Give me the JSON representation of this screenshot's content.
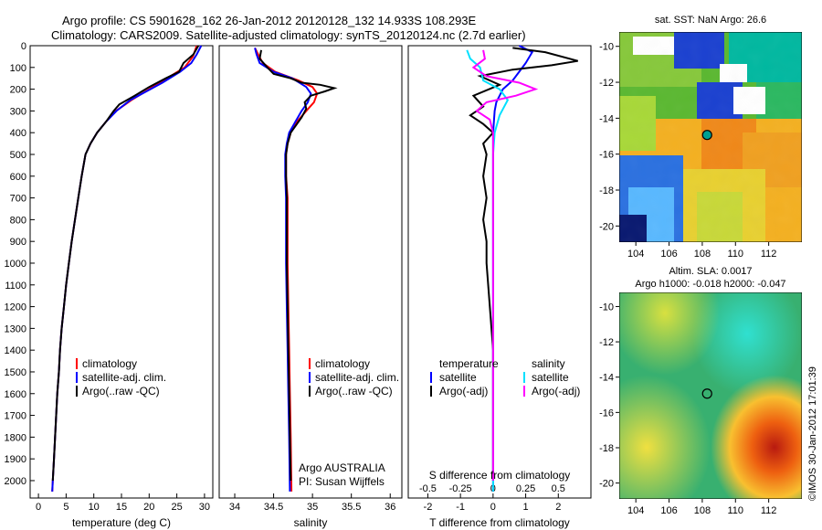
{
  "header": {
    "line1": "Argo profile: CS 5901628_162 26-Jan-2012 20120128_132 14.933S 108.293E",
    "line2": "Climatology: CARS2009. Satellite-adjusted climatology: synTS_20120124.nc (2.7d earlier)"
  },
  "colors": {
    "climatology": "#ff0000",
    "satellite_adj": "#0000ff",
    "argo": "#000000",
    "salinity_satellite": "#00e0ff",
    "salinity_argo": "#ff00ff"
  },
  "depth_axis": {
    "ticks": [
      0,
      100,
      200,
      300,
      400,
      500,
      600,
      700,
      800,
      900,
      1000,
      1100,
      1200,
      1300,
      1400,
      1500,
      1600,
      1700,
      1800,
      1900,
      2000
    ],
    "range": [
      0,
      2080
    ]
  },
  "panels": {
    "temperature": {
      "xlabel": "temperature (deg C)",
      "xticks": [
        "0",
        "5",
        "10",
        "15",
        "20",
        "25",
        "30"
      ],
      "xrange": [
        -1.5,
        31.5
      ],
      "legend": [
        "climatology",
        "satellite-adj. clim.",
        "Argo(..raw -QC)"
      ]
    },
    "salinity": {
      "xlabel": "salinity",
      "xticks": [
        "34",
        "34.5",
        "35",
        "35.5",
        "36"
      ],
      "xrange": [
        33.8,
        36.15
      ],
      "legend": [
        "climatology",
        "satellite-adj. clim.",
        "Argo(..raw -QC)"
      ],
      "note1": "Argo AUSTRALIA",
      "note2": "PI: Susan Wijffels"
    },
    "difference": {
      "xlabel": "T difference from climatology",
      "xlabel_top": "S difference from climatology",
      "xticks_top": [
        "-0.5",
        "-0.25",
        "0",
        "0.25",
        "0.5"
      ],
      "xticks_bottom": [
        "-2",
        "-1",
        "0",
        "1",
        "2"
      ],
      "xrange": [
        -2.6,
        3.0
      ],
      "legend_left_title": "temperature",
      "legend_left": [
        "satellite",
        "Argo(-adj)"
      ],
      "legend_right_title": "salinity",
      "legend_right": [
        "satellite",
        "Argo(-adj)"
      ]
    }
  },
  "maps": {
    "sst_title": "sat. SST: NaN Argo: 26.6",
    "sla_title1": "Altim. SLA: 0.0017",
    "sla_title2": "Argo h1000: -0.018 h2000: -0.047",
    "xticks": [
      "104",
      "106",
      "108",
      "110",
      "112"
    ],
    "yticks": [
      "-10",
      "-12",
      "-14",
      "-16",
      "-18",
      "-20"
    ],
    "xrange": [
      103,
      114
    ],
    "yrange": [
      -20.9,
      -9.2
    ],
    "argo_point": {
      "lon": 108.293,
      "lat": -14.933
    }
  },
  "footer": {
    "credit": "©IMOS 30-Jan-2012 17:01:39"
  },
  "chart_data": [
    {
      "type": "line",
      "title": "",
      "xlabel": "temperature (deg C)",
      "ylabel": "",
      "ylim": [
        0,
        2080
      ],
      "xlim": [
        -1.5,
        31.5
      ],
      "series": [
        {
          "name": "climatology",
          "points": [
            [
              28.6,
              0
            ],
            [
              27.9,
              50
            ],
            [
              26.4,
              100
            ],
            [
              23.2,
              150
            ],
            [
              20.0,
              200
            ],
            [
              16.8,
              250
            ],
            [
              14.0,
              300
            ],
            [
              12.2,
              350
            ],
            [
              10.6,
              400
            ],
            [
              9.4,
              450
            ],
            [
              8.5,
              500
            ],
            [
              7.8,
              600
            ],
            [
              7.2,
              700
            ],
            [
              6.6,
              800
            ],
            [
              6.0,
              900
            ],
            [
              5.5,
              1000
            ],
            [
              5.0,
              1100
            ],
            [
              4.6,
              1200
            ],
            [
              4.2,
              1300
            ],
            [
              3.9,
              1400
            ],
            [
              3.7,
              1500
            ],
            [
              3.4,
              1600
            ],
            [
              3.2,
              1700
            ],
            [
              3.0,
              1800
            ],
            [
              2.8,
              1900
            ],
            [
              2.6,
              2000
            ],
            [
              2.5,
              2050
            ]
          ]
        },
        {
          "name": "satellite-adj. clim.",
          "points": [
            [
              29.4,
              0
            ],
            [
              28.6,
              40
            ],
            [
              27.6,
              80
            ],
            [
              25.6,
              120
            ],
            [
              22.4,
              170
            ],
            [
              19.5,
              210
            ],
            [
              16.6,
              250
            ],
            [
              14.1,
              300
            ],
            [
              12.2,
              350
            ],
            [
              10.6,
              400
            ],
            [
              9.4,
              450
            ],
            [
              8.5,
              500
            ],
            [
              7.8,
              600
            ],
            [
              7.2,
              700
            ],
            [
              6.6,
              800
            ],
            [
              6.0,
              900
            ],
            [
              5.5,
              1000
            ],
            [
              5.0,
              1100
            ],
            [
              4.6,
              1200
            ],
            [
              4.2,
              1300
            ],
            [
              3.9,
              1400
            ],
            [
              3.7,
              1500
            ],
            [
              3.4,
              1600
            ],
            [
              3.2,
              1700
            ],
            [
              3.0,
              1800
            ],
            [
              2.8,
              1900
            ],
            [
              2.6,
              2000
            ],
            [
              2.5,
              2050
            ]
          ]
        },
        {
          "name": "Argo(..raw -QC)",
          "points": [
            [
              28.9,
              0
            ],
            [
              28.0,
              40
            ],
            [
              26.2,
              80
            ],
            [
              25.4,
              120
            ],
            [
              23.0,
              150
            ],
            [
              20.0,
              190
            ],
            [
              17.4,
              230
            ],
            [
              14.6,
              270
            ],
            [
              13.6,
              300
            ],
            [
              12.2,
              350
            ],
            [
              10.6,
              400
            ],
            [
              9.4,
              450
            ],
            [
              8.5,
              500
            ],
            [
              7.8,
              600
            ],
            [
              7.2,
              700
            ],
            [
              6.6,
              800
            ],
            [
              6.0,
              900
            ],
            [
              5.5,
              1000
            ],
            [
              5.0,
              1100
            ],
            [
              4.6,
              1200
            ],
            [
              4.2,
              1300
            ],
            [
              3.9,
              1400
            ],
            [
              3.7,
              1500
            ],
            [
              3.4,
              1600
            ],
            [
              3.2,
              1700
            ],
            [
              3.0,
              1800
            ],
            [
              2.8,
              1900
            ],
            [
              2.6,
              2000
            ]
          ]
        }
      ]
    },
    {
      "type": "line",
      "title": "",
      "xlabel": "salinity",
      "ylabel": "",
      "ylim": [
        0,
        2080
      ],
      "xlim": [
        33.8,
        36.15
      ],
      "series": [
        {
          "name": "climatology",
          "points": [
            [
              34.26,
              10
            ],
            [
              34.3,
              40
            ],
            [
              34.36,
              80
            ],
            [
              34.52,
              120
            ],
            [
              34.82,
              160
            ],
            [
              35.0,
              190
            ],
            [
              35.06,
              220
            ],
            [
              35.02,
              260
            ],
            [
              34.92,
              300
            ],
            [
              34.8,
              350
            ],
            [
              34.72,
              400
            ],
            [
              34.68,
              450
            ],
            [
              34.66,
              500
            ],
            [
              34.66,
              600
            ],
            [
              34.68,
              700
            ],
            [
              34.68,
              800
            ],
            [
              34.68,
              1000
            ],
            [
              34.69,
              1200
            ],
            [
              34.7,
              1400
            ],
            [
              34.71,
              1600
            ],
            [
              34.72,
              1800
            ],
            [
              34.73,
              2050
            ]
          ]
        },
        {
          "name": "satellite-adj. clim.",
          "points": [
            [
              34.26,
              10
            ],
            [
              34.28,
              40
            ],
            [
              34.32,
              80
            ],
            [
              34.5,
              120
            ],
            [
              34.74,
              150
            ],
            [
              34.92,
              190
            ],
            [
              34.98,
              220
            ],
            [
              34.94,
              260
            ],
            [
              34.86,
              300
            ],
            [
              34.78,
              350
            ],
            [
              34.7,
              400
            ],
            [
              34.67,
              450
            ],
            [
              34.65,
              500
            ],
            [
              34.65,
              600
            ],
            [
              34.66,
              700
            ],
            [
              34.66,
              800
            ],
            [
              34.66,
              1000
            ],
            [
              34.67,
              1200
            ],
            [
              34.68,
              1400
            ],
            [
              34.69,
              1600
            ],
            [
              34.7,
              1800
            ],
            [
              34.71,
              2050
            ]
          ]
        },
        {
          "name": "Argo(..raw -QC)",
          "points": [
            [
              34.34,
              20
            ],
            [
              34.32,
              60
            ],
            [
              34.42,
              100
            ],
            [
              34.5,
              130
            ],
            [
              34.72,
              150
            ],
            [
              34.86,
              170
            ],
            [
              35.1,
              180
            ],
            [
              35.28,
              195
            ],
            [
              35.16,
              210
            ],
            [
              34.98,
              230
            ],
            [
              34.9,
              260
            ],
            [
              34.92,
              290
            ],
            [
              34.86,
              330
            ],
            [
              34.78,
              370
            ],
            [
              34.72,
              400
            ],
            [
              34.68,
              450
            ],
            [
              34.66,
              500
            ],
            [
              34.66,
              600
            ],
            [
              34.67,
              700
            ],
            [
              34.67,
              800
            ],
            [
              34.67,
              1000
            ],
            [
              34.68,
              1200
            ],
            [
              34.69,
              1400
            ],
            [
              34.7,
              1600
            ],
            [
              34.71,
              1800
            ],
            [
              34.72,
              2000
            ]
          ]
        }
      ]
    },
    {
      "type": "line",
      "title": "",
      "xlabel": "T difference from climatology",
      "ylabel": "",
      "ylim": [
        0,
        2080
      ],
      "xlim": [
        -2.6,
        3.0
      ],
      "series": [
        {
          "name": "temperature satellite",
          "points": [
            [
              0.8,
              0
            ],
            [
              1.2,
              30
            ],
            [
              1.0,
              80
            ],
            [
              0.8,
              120
            ],
            [
              0.6,
              160
            ],
            [
              0.3,
              200
            ],
            [
              0.1,
              260
            ],
            [
              0.05,
              300
            ],
            [
              0.0,
              400
            ],
            [
              0.0,
              2050
            ]
          ]
        },
        {
          "name": "temperature Argo(-adj)",
          "points": [
            [
              0.6,
              10
            ],
            [
              1.6,
              30
            ],
            [
              2.6,
              70
            ],
            [
              1.8,
              90
            ],
            [
              0.6,
              110
            ],
            [
              -0.4,
              140
            ],
            [
              0.2,
              180
            ],
            [
              -0.6,
              230
            ],
            [
              -0.3,
              280
            ],
            [
              -0.7,
              320
            ],
            [
              -0.3,
              360
            ],
            [
              0.0,
              400
            ],
            [
              -0.3,
              450
            ],
            [
              -0.2,
              500
            ],
            [
              -0.3,
              600
            ],
            [
              -0.2,
              700
            ],
            [
              -0.3,
              800
            ],
            [
              -0.2,
              900
            ],
            [
              -0.2,
              1000
            ],
            [
              -0.1,
              1200
            ],
            [
              0.0,
              1400
            ],
            [
              0.0,
              2000
            ]
          ]
        },
        {
          "name": "salinity satellite",
          "points": [
            [
              -0.8,
              20
            ],
            [
              -0.7,
              60
            ],
            [
              -0.4,
              100
            ],
            [
              -0.3,
              160
            ],
            [
              0.2,
              200
            ],
            [
              0.45,
              250
            ],
            [
              0.2,
              320
            ],
            [
              0.05,
              400
            ],
            [
              0.0,
              500
            ],
            [
              0.0,
              2050
            ]
          ]
        },
        {
          "name": "salinity Argo(-adj)",
          "points": [
            [
              -0.3,
              20
            ],
            [
              -0.25,
              60
            ],
            [
              -0.6,
              100
            ],
            [
              -0.2,
              140
            ],
            [
              0.8,
              170
            ],
            [
              1.3,
              200
            ],
            [
              0.7,
              230
            ],
            [
              -0.2,
              260
            ],
            [
              -0.5,
              300
            ],
            [
              -0.1,
              340
            ],
            [
              0.0,
              400
            ],
            [
              0.0,
              500
            ],
            [
              0.0,
              2000
            ]
          ]
        }
      ]
    }
  ]
}
